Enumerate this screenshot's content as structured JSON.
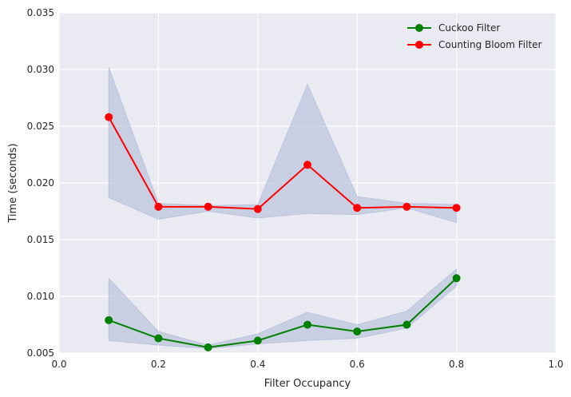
{
  "chart_data": {
    "type": "line",
    "xlabel": "Filter Occupancy",
    "ylabel": "Time (seconds)",
    "xlim": [
      0.0,
      1.0
    ],
    "ylim": [
      0.005,
      0.035
    ],
    "x_ticks": [
      "0.0",
      "0.2",
      "0.4",
      "0.6",
      "0.8",
      "1.0"
    ],
    "y_ticks": [
      "0.005",
      "0.010",
      "0.015",
      "0.020",
      "0.025",
      "0.030",
      "0.035"
    ],
    "grid": true,
    "legend_position": "top-right",
    "x": [
      0.1,
      0.2,
      0.3,
      0.4,
      0.5,
      0.6,
      0.7,
      0.8
    ],
    "series": [
      {
        "name": "Cuckoo Filter",
        "color": "#008000",
        "marker": "circle",
        "values": [
          0.0079,
          0.0063,
          0.0055,
          0.0061,
          0.0075,
          0.0069,
          0.0075,
          0.0116
        ],
        "band_lower": [
          0.0061,
          0.0057,
          0.0054,
          0.0058,
          0.0061,
          0.0063,
          0.0072,
          0.0109
        ],
        "band_upper": [
          0.0116,
          0.0069,
          0.0057,
          0.0067,
          0.0086,
          0.0075,
          0.0087,
          0.0124
        ]
      },
      {
        "name": "Counting Bloom Filter",
        "color": "#ff0000",
        "marker": "circle",
        "values": [
          0.0258,
          0.0179,
          0.0179,
          0.0177,
          0.0216,
          0.0178,
          0.0179,
          0.0178
        ],
        "band_lower": [
          0.0187,
          0.0168,
          0.0175,
          0.0169,
          0.0173,
          0.0172,
          0.0178,
          0.0165
        ],
        "band_upper": [
          0.0302,
          0.0182,
          0.018,
          0.0181,
          0.0287,
          0.0188,
          0.0182,
          0.0181
        ]
      }
    ],
    "band_color": "#b0bcd8",
    "plot_background": "#eaeaf2",
    "grid_color": "#ffffff"
  }
}
